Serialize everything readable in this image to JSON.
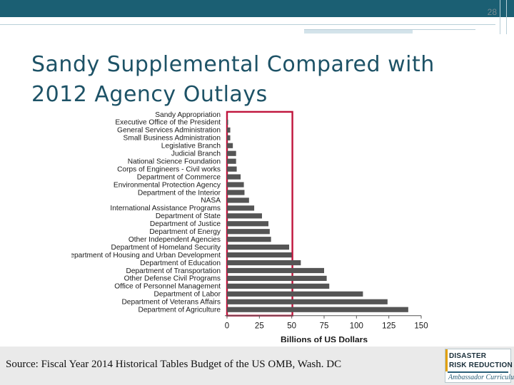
{
  "slide": {
    "number": "28",
    "title_line1": "Sandy Supplemental Compared with",
    "title_line2": "2012 Agency Outlays",
    "source": "Source: Fiscal Year 2014 Historical Tables Budget of the US OMB, Wash. DC"
  },
  "logo": {
    "line1": "DISASTER",
    "line2": "RISK REDUCTION",
    "line3": "Ambassador Curriculum"
  },
  "colors": {
    "header": "#1b5f73",
    "bar": "#555555",
    "highlight": "#c0143c",
    "title": "#1d5266"
  },
  "chart_data": {
    "type": "bar",
    "orientation": "horizontal",
    "title": "",
    "xlabel": "Billions of US Dollars",
    "ylabel": "",
    "xlim": [
      0,
      150
    ],
    "xticks": [
      0,
      25,
      50,
      75,
      100,
      125,
      150
    ],
    "grid": false,
    "highlight": {
      "category": "Sandy Appropriation",
      "value": 50.5,
      "style": "outline"
    },
    "categories": [
      "Sandy Appropriation",
      "Executive Office of the President",
      "General Services Administration",
      "Small Business Administration",
      "Legislative Branch",
      "Judicial Branch",
      "National Science Foundation",
      "Corps of Engineers - Civil works",
      "Department of Commerce",
      "Environmental Protection Agency",
      "Department of the Interior",
      "NASA",
      "International Assistance Programs",
      "Department of State",
      "Department of Justice",
      "Department of Energy",
      "Other Independent Agencies",
      "Department of Homeland Security",
      "Department of Housing and Urban Development",
      "Department of Education",
      "Department of Transportation",
      "Other Defense Civil Programs",
      "Office of Personnel Management",
      "Department of Labor",
      "Department of Veterans Affairs",
      "Department of Agriculture"
    ],
    "values": [
      50.5,
      0.4,
      2.5,
      2.5,
      4.5,
      7,
      7,
      7.5,
      10.5,
      13,
      13.5,
      17,
      21,
      27,
      32,
      33,
      34,
      48,
      50,
      57,
      75,
      77,
      79,
      105,
      124,
      140
    ]
  }
}
